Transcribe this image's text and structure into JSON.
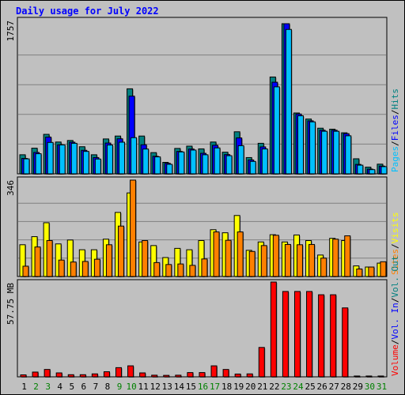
{
  "title": "Daily usage for July 2022",
  "colors": {
    "hits": "#008080",
    "files": "#0000ff",
    "pages": "#00c0ff",
    "visits": "#ffff00",
    "sites": "#ff8000",
    "vol_in": "#0000ff",
    "vol_out": "#008080",
    "volume": "#ff0000",
    "weekend": "#008000",
    "weekday": "#000000"
  },
  "chart_data": [
    {
      "type": "bar",
      "panel": "hits-files-pages",
      "categories": [
        "1",
        "2",
        "3",
        "4",
        "5",
        "6",
        "7",
        "8",
        "9",
        "10",
        "11",
        "12",
        "13",
        "14",
        "15",
        "16",
        "17",
        "18",
        "19",
        "20",
        "21",
        "22",
        "23",
        "24",
        "25",
        "26",
        "27",
        "28",
        "29",
        "30",
        "31"
      ],
      "weekend_days": [
        "2",
        "3",
        "9",
        "10",
        "16",
        "17",
        "23",
        "24",
        "30",
        "31"
      ],
      "ymax_label": "1757",
      "ymax": 1757,
      "series": [
        {
          "name": "Hits",
          "values": [
            223,
            300,
            462,
            372,
            390,
            317,
            223,
            408,
            442,
            995,
            442,
            248,
            134,
            297,
            324,
            292,
            372,
            253,
            492,
            190,
            357,
            1133,
            1757,
            712,
            641,
            534,
            522,
            480,
            176,
            78,
            113
          ]
        },
        {
          "name": "Files",
          "values": [
            180,
            250,
            430,
            340,
            370,
            275,
            190,
            360,
            410,
            909,
            340,
            205,
            123,
            262,
            290,
            240,
            334,
            225,
            420,
            162,
            315,
            1072,
            1757,
            700,
            620,
            510,
            510,
            470,
            110,
            55,
            90
          ]
        },
        {
          "name": "Pages",
          "values": [
            175,
            235,
            367,
            338,
            357,
            262,
            173,
            337,
            370,
            423,
            290,
            198,
            111,
            256,
            278,
            223,
            303,
            212,
            329,
            145,
            291,
            1018,
            1690,
            679,
            608,
            498,
            498,
            445,
            101,
            49,
            84
          ]
        }
      ],
      "legend": [
        "Hits",
        "Files",
        "Pages"
      ]
    },
    {
      "type": "bar",
      "panel": "visits-sites",
      "categories": [
        "1",
        "2",
        "3",
        "4",
        "5",
        "6",
        "7",
        "8",
        "9",
        "10",
        "11",
        "12",
        "13",
        "14",
        "15",
        "16",
        "17",
        "18",
        "19",
        "20",
        "21",
        "22",
        "23",
        "24",
        "25",
        "26",
        "27",
        "28",
        "29",
        "30",
        "31"
      ],
      "ymax_label": "346",
      "ymax": 346,
      "series": [
        {
          "name": "Visits",
          "values": [
            114,
            143,
            193,
            117,
            131,
            96,
            96,
            134,
            230,
            300,
            124,
            111,
            68,
            101,
            96,
            129,
            168,
            157,
            219,
            94,
            124,
            150,
            124,
            149,
            129,
            77,
            137,
            129,
            38,
            34,
            48
          ]
        },
        {
          "name": "Sites",
          "values": [
            37,
            106,
            129,
            59,
            52,
            54,
            62,
            114,
            181,
            346,
            129,
            50,
            43,
            45,
            40,
            63,
            160,
            130,
            160,
            90,
            111,
            148,
            115,
            114,
            115,
            66,
            134,
            146,
            27,
            34,
            53
          ]
        }
      ],
      "legend": [
        "Visits",
        "Sites"
      ]
    },
    {
      "type": "bar",
      "panel": "volume",
      "categories": [
        "1",
        "2",
        "3",
        "4",
        "5",
        "6",
        "7",
        "8",
        "9",
        "10",
        "11",
        "12",
        "13",
        "14",
        "15",
        "16",
        "17",
        "18",
        "19",
        "20",
        "21",
        "22",
        "23",
        "24",
        "25",
        "26",
        "27",
        "28",
        "29",
        "30",
        "31"
      ],
      "ymax_label": "57.75 MB",
      "ymax": 57.75,
      "series": [
        {
          "name": "Volume",
          "values": [
            1.2,
            2.9,
            4.5,
            2.4,
            1.3,
            1.3,
            1.8,
            3.1,
            5.6,
            6.7,
            2.4,
            1.0,
            0.9,
            1.0,
            2.6,
            2.6,
            6.7,
            4.5,
            1.7,
            1.8,
            17.9,
            57.75,
            52.0,
            52.0,
            52.0,
            50.0,
            50.0,
            42.0,
            0.5,
            0.5,
            0.5
          ]
        }
      ],
      "legend": [
        "Volume",
        "Vol. In",
        "Vol. Out"
      ]
    }
  ]
}
